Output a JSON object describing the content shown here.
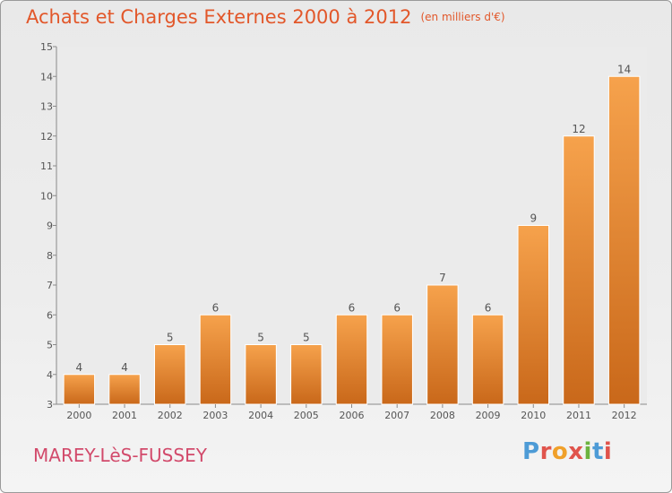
{
  "chart_data": {
    "type": "bar",
    "title": "Achats et Charges Externes 2000 à 2012",
    "unit": "(en milliers d'€)",
    "categories": [
      "2000",
      "2001",
      "2002",
      "2003",
      "2004",
      "2005",
      "2006",
      "2007",
      "2008",
      "2009",
      "2010",
      "2011",
      "2012"
    ],
    "values": [
      4,
      4,
      5,
      6,
      5,
      5,
      6,
      6,
      7,
      6,
      9,
      12,
      14
    ],
    "data_labels": [
      "4",
      "4",
      "5",
      "6",
      "5",
      "5",
      "6",
      "6",
      "7",
      "6",
      "9",
      "12",
      "14"
    ],
    "ylim": [
      3,
      15
    ],
    "yticks": [
      3,
      4,
      5,
      6,
      7,
      8,
      9,
      10,
      11,
      12,
      13,
      14,
      15
    ],
    "grid": false,
    "bar_color_light": "#f6a24c",
    "bar_color_dark": "#c9681a"
  },
  "footer": {
    "commune": "MAREY-LèS-FUSSEY",
    "logo_text": "Proxiti",
    "logo_colors": [
      "#4d9bd6",
      "#e0544c",
      "#f0a02a",
      "#e0544c",
      "#6cb33f",
      "#4d9bd6",
      "#e0544c"
    ]
  },
  "colors": {
    "title": "#e2572a",
    "commune": "#d24a6b"
  }
}
